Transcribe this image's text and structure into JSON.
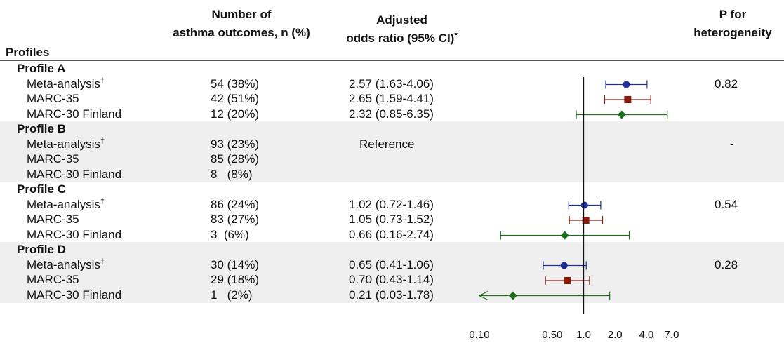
{
  "headers": {
    "profiles": "Profiles",
    "outcomes_line1": "Number of",
    "outcomes_line2": "asthma outcomes, n (%)",
    "or_line1": "Adjusted",
    "or_line2": "odds ratio (95% CI)",
    "or_mark": "*",
    "p_line1": "P for",
    "p_line2": "heterogeneity"
  },
  "dagger": "†",
  "colors": {
    "meta": "#1f2f9a",
    "marc35": "#8b1a0e",
    "finland": "#1e6e1e",
    "band": "#efefef"
  },
  "chart_data": {
    "type": "forest",
    "x_scale": "log",
    "xlim": [
      0.1,
      7.0
    ],
    "x_ticks": [
      "0.10",
      "0.50",
      "1.0",
      "2.0",
      "4.0",
      "7.0"
    ],
    "reference_line": 1.0,
    "groups": [
      {
        "name": "Profile A",
        "p_heterogeneity": "0.82",
        "rows": [
          {
            "label": "Meta-analysis",
            "dagger": true,
            "n": "54 (38%)",
            "or_text": "2.57 (1.63-4.06)",
            "or": 2.57,
            "lo": 1.63,
            "hi": 4.06,
            "series": "meta"
          },
          {
            "label": "MARC-35",
            "dagger": false,
            "n": "42 (51%)",
            "or_text": "2.65 (1.59-4.41)",
            "or": 2.65,
            "lo": 1.59,
            "hi": 4.41,
            "series": "marc35"
          },
          {
            "label": "MARC-30 Finland",
            "dagger": false,
            "n": "12 (20%)",
            "or_text": "2.32 (0.85-6.35)",
            "or": 2.32,
            "lo": 0.85,
            "hi": 6.35,
            "series": "finland"
          }
        ]
      },
      {
        "name": "Profile B",
        "p_heterogeneity": "-",
        "reference_text": "Reference",
        "rows": [
          {
            "label": "Meta-analysis",
            "dagger": true,
            "n": "93 (23%)",
            "or_text": "Reference",
            "series": "meta"
          },
          {
            "label": "MARC-35",
            "dagger": false,
            "n": "85 (28%)",
            "or_text": "",
            "series": "marc35"
          },
          {
            "label": "MARC-30 Finland",
            "dagger": false,
            "n": "8   (8%)",
            "or_text": "",
            "series": "finland"
          }
        ]
      },
      {
        "name": "Profile C",
        "p_heterogeneity": "0.54",
        "rows": [
          {
            "label": "Meta-analysis",
            "dagger": true,
            "n": "86 (24%)",
            "or_text": "1.02 (0.72-1.46)",
            "or": 1.02,
            "lo": 0.72,
            "hi": 1.46,
            "series": "meta"
          },
          {
            "label": "MARC-35",
            "dagger": false,
            "n": "83 (27%)",
            "or_text": "1.05 (0.73-1.52)",
            "or": 1.05,
            "lo": 0.73,
            "hi": 1.52,
            "series": "marc35"
          },
          {
            "label": "MARC-30 Finland",
            "dagger": false,
            "n": "3  (6%)",
            "or_text": "0.66 (0.16-2.74)",
            "or": 0.66,
            "lo": 0.16,
            "hi": 2.74,
            "series": "finland"
          }
        ]
      },
      {
        "name": "Profile D",
        "p_heterogeneity": "0.28",
        "rows": [
          {
            "label": "Meta-analysis",
            "dagger": true,
            "n": "30 (14%)",
            "or_text": "0.65 (0.41-1.06)",
            "or": 0.65,
            "lo": 0.41,
            "hi": 1.06,
            "series": "meta"
          },
          {
            "label": "MARC-35",
            "dagger": false,
            "n": "29 (18%)",
            "or_text": "0.70 (0.43-1.14)",
            "or": 0.7,
            "lo": 0.43,
            "hi": 1.14,
            "series": "marc35"
          },
          {
            "label": "MARC-30 Finland",
            "dagger": false,
            "n": "1   (2%)",
            "or_text": "0.21 (0.03-1.78)",
            "or": 0.21,
            "lo": 0.03,
            "hi": 1.78,
            "series": "finland",
            "truncated_low": true
          }
        ]
      }
    ]
  }
}
